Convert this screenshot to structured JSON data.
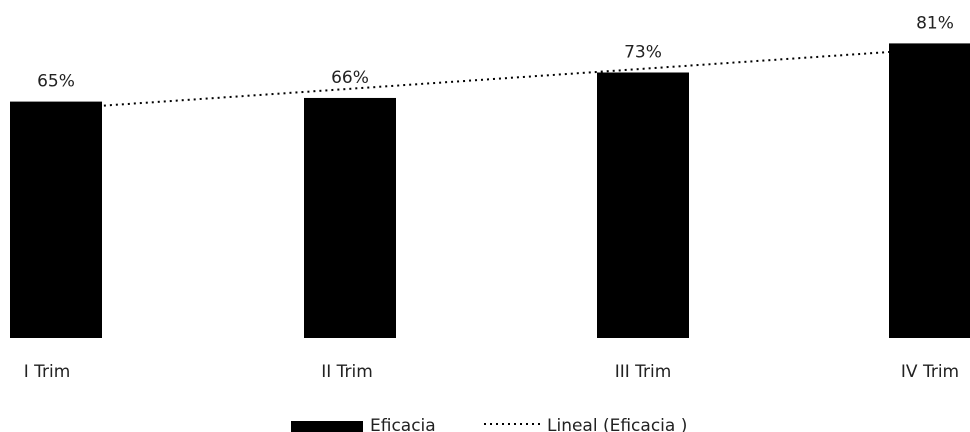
{
  "chart_data": {
    "type": "bar",
    "categories": [
      "I Trim",
      "II Trim",
      "III Trim",
      "IV Trim"
    ],
    "series": [
      {
        "name": "Eficacia",
        "values": [
          65,
          66,
          73,
          81
        ],
        "labels": [
          "65%",
          "66%",
          "73%",
          "81%"
        ]
      }
    ],
    "trendline": {
      "name": "Lineal (Eficacia )",
      "type": "linear",
      "style": "dotted"
    },
    "ylim": [
      0,
      100
    ],
    "legend_position": "bottom",
    "grid": false,
    "colors": {
      "bar": "#000000",
      "trendline": "#000000",
      "text": "#222222"
    }
  }
}
